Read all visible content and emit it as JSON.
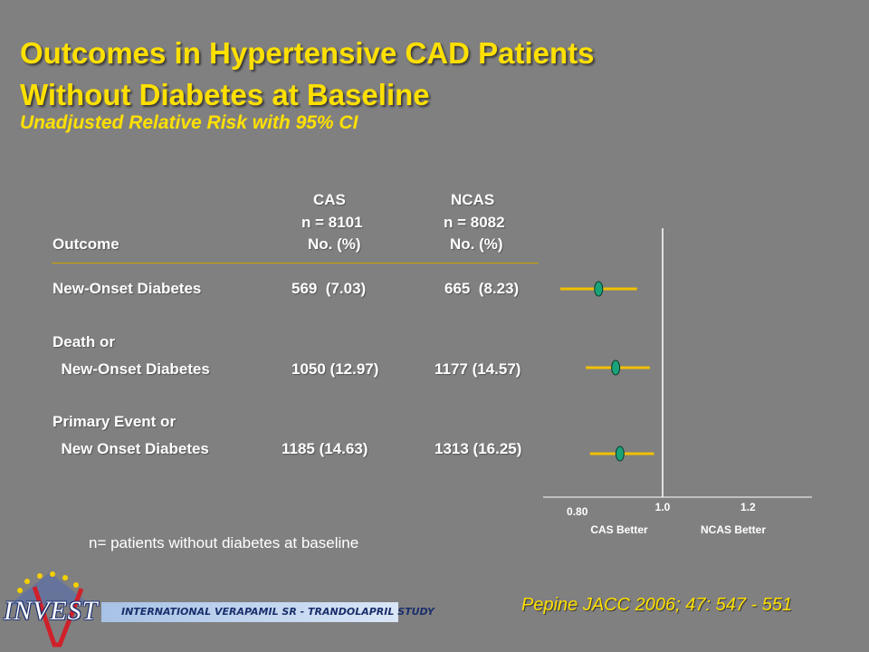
{
  "slide": {
    "title_line1": "Outcomes in Hypertensive CAD Patients",
    "title_line2": "Without Diabetes at Baseline",
    "subtitle": "Unadjusted Relative Risk with 95% CI",
    "footnote": "n= patients without diabetes at baseline",
    "citation": "Pepine JACC 2006; 47: 547 - 551"
  },
  "table": {
    "header": {
      "outcome": "Outcome",
      "cas_name": "CAS",
      "cas_n": "n = 8101",
      "cas_unit": "No. (%)",
      "ncas_name": "NCAS",
      "ncas_n": "n = 8082",
      "ncas_unit": "No. (%)"
    },
    "rows": [
      {
        "label_line1": "New-Onset Diabetes",
        "label_line2": "",
        "cas": "569  (7.03)",
        "ncas": "665  (8.23)"
      },
      {
        "label_line1": "Death or",
        "label_line2": "  New-Onset Diabetes",
        "cas": "1050 (12.97)",
        "ncas": "1177 (14.57)"
      },
      {
        "label_line1": "Primary Event or",
        "label_line2": "  New Onset Diabetes",
        "cas": "1185 (14.63)",
        "ncas": "1313 (16.25)"
      }
    ]
  },
  "logo": {
    "word": "INVEST",
    "banner": "INTERNATIONAL VERAPAMIL SR - TRANDOLAPRIL STUDY"
  },
  "chart_data": {
    "type": "forest",
    "xlim": [
      0.72,
      1.35
    ],
    "reference_line": 1.0,
    "ticks": [
      {
        "value": 0.8,
        "label": "0.80"
      },
      {
        "value": 1.0,
        "label": "1.0"
      },
      {
        "value": 1.2,
        "label": "1.2"
      }
    ],
    "side_labels": {
      "left": "CAS Better",
      "right": "NCAS Better"
    },
    "series": [
      {
        "estimate": 0.85,
        "ci": [
          0.76,
          0.94
        ]
      },
      {
        "estimate": 0.89,
        "ci": [
          0.82,
          0.97
        ]
      },
      {
        "estimate": 0.9,
        "ci": [
          0.83,
          0.98
        ]
      }
    ],
    "colors": {
      "ci_line": "#f0c000",
      "marker": "#1aa37a",
      "axis": "#ffffff"
    }
  }
}
